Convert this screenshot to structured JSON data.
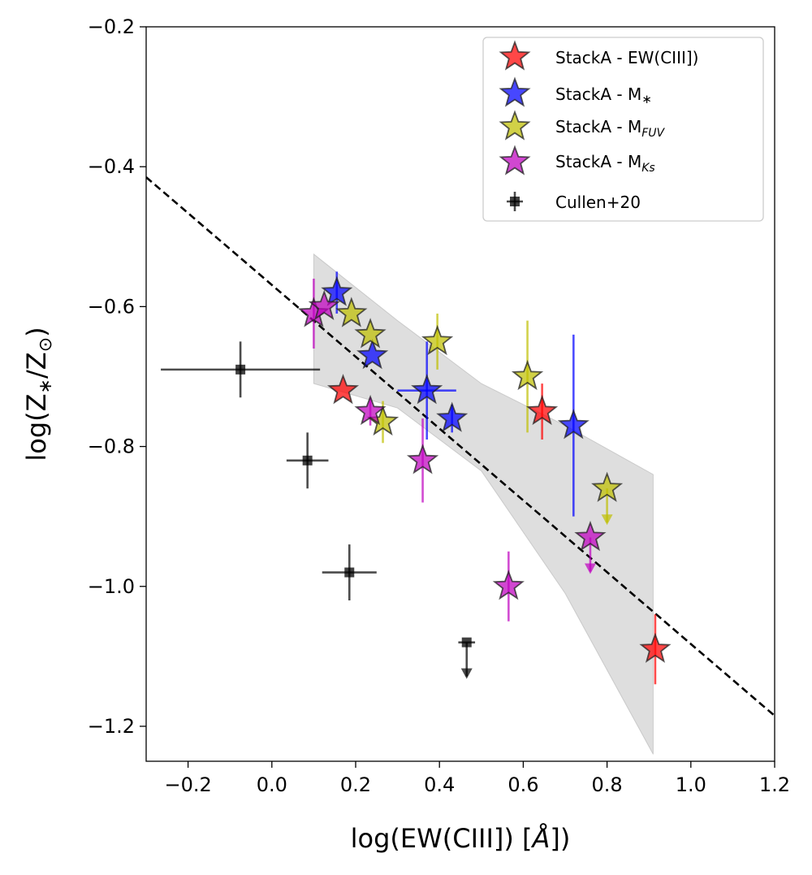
{
  "chart_data": {
    "type": "scatter",
    "title": "",
    "xlabel_main": "log(EW(CIII]) [",
    "xlabel_unit": "Å",
    "xlabel_close": "])",
    "ylabel_main": "log(Z",
    "ylabel_sub1": "∗",
    "ylabel_mid": "/Z",
    "ylabel_sub2": "⊙",
    "ylabel_close": ")",
    "xlim": [
      -0.3,
      1.2
    ],
    "ylim": [
      -1.25,
      -0.2
    ],
    "xticks": [
      -0.2,
      0.0,
      0.2,
      0.4,
      0.6,
      0.8,
      1.0,
      1.2
    ],
    "xtick_labels": [
      "−0.2",
      "0.0",
      "0.2",
      "0.4",
      "0.6",
      "0.8",
      "1.0",
      "1.2"
    ],
    "yticks": [
      -1.2,
      -1.0,
      -0.8,
      -0.6,
      -0.4,
      -0.2
    ],
    "ytick_labels": [
      "−1.2",
      "−1.0",
      "−0.8",
      "−0.6",
      "−0.4",
      "−0.2"
    ],
    "fit_line": {
      "x": [
        -0.3,
        1.2
      ],
      "y": [
        -0.415,
        -1.185
      ],
      "color": "#000000",
      "style": "dashed"
    },
    "confidence_band": {
      "x": [
        0.1,
        0.3,
        0.5,
        0.7,
        0.91
      ],
      "upper": [
        -0.525,
        -0.62,
        -0.71,
        -0.77,
        -0.84
      ],
      "lower": [
        -0.71,
        -0.745,
        -0.835,
        -1.01,
        -1.24
      ],
      "color": "#c8c8c8"
    },
    "legend_position": "top-right",
    "legend": [
      {
        "label": "StackA - EW(CIII])",
        "base": "StackA - EW(CIII])",
        "sub": "",
        "color": "#ff0000",
        "marker": "star"
      },
      {
        "label": "StackA - M*",
        "base": "StackA - M",
        "sub": "∗",
        "color": "#0000ff",
        "marker": "star"
      },
      {
        "label": "StackA - M_FUV",
        "base": "StackA - M",
        "sub": "FUV",
        "color": "#bfbf00",
        "marker": "star"
      },
      {
        "label": "StackA - M_Ks",
        "base": "StackA - M",
        "sub": "Ks",
        "color": "#bf00bf",
        "marker": "star"
      },
      {
        "label": "Cullen+20",
        "base": "Cullen+20",
        "sub": "",
        "color": "#000000",
        "marker": "square"
      }
    ],
    "series": [
      {
        "name": "StackA - EW(CIII])",
        "color": "#ff0000",
        "marker": "star",
        "points": [
          {
            "x": 0.17,
            "y": -0.72,
            "yerr": 0.0,
            "xerr": 0.0
          },
          {
            "x": 0.645,
            "y": -0.75,
            "yerr": 0.04,
            "xerr": 0.0
          },
          {
            "x": 0.915,
            "y": -1.09,
            "yerr": 0.05,
            "xerr": 0.0
          }
        ]
      },
      {
        "name": "StackA - M*",
        "color": "#0000ff",
        "marker": "star",
        "points": [
          {
            "x": 0.155,
            "y": -0.58,
            "yerr": 0.03,
            "xerr": 0.0
          },
          {
            "x": 0.24,
            "y": -0.67,
            "yerr": 0.0,
            "xerr": 0.0
          },
          {
            "x": 0.37,
            "y": -0.72,
            "yerr": 0.07,
            "xerr": 0.07
          },
          {
            "x": 0.43,
            "y": -0.76,
            "yerr": 0.02,
            "xerr": 0.0
          },
          {
            "x": 0.72,
            "y": -0.77,
            "yerr_low": 0.13,
            "yerr_high": 0.13,
            "xerr": 0.0
          }
        ]
      },
      {
        "name": "StackA - M_FUV",
        "color": "#bfbf00",
        "marker": "star",
        "points": [
          {
            "x": 0.19,
            "y": -0.61,
            "yerr": 0.0,
            "xerr": 0.0
          },
          {
            "x": 0.235,
            "y": -0.64,
            "yerr": 0.0,
            "xerr": 0.0
          },
          {
            "x": 0.265,
            "y": -0.765,
            "yerr": 0.03,
            "xerr": 0.0
          },
          {
            "x": 0.395,
            "y": -0.65,
            "yerr": 0.04,
            "xerr": 0.0
          },
          {
            "x": 0.61,
            "y": -0.7,
            "yerr": 0.08,
            "xerr": 0.0
          },
          {
            "x": 0.8,
            "y": -0.86,
            "yerr": 0.0,
            "xerr": 0.0,
            "upper_limit": true
          }
        ]
      },
      {
        "name": "StackA - M_Ks",
        "color": "#bf00bf",
        "marker": "star",
        "points": [
          {
            "x": 0.1,
            "y": -0.61,
            "yerr": 0.05,
            "xerr": 0.0
          },
          {
            "x": 0.125,
            "y": -0.6,
            "yerr": 0.0,
            "xerr": 0.0
          },
          {
            "x": 0.235,
            "y": -0.75,
            "yerr": 0.02,
            "xerr": 0.0
          },
          {
            "x": 0.36,
            "y": -0.82,
            "yerr": 0.06,
            "xerr": 0.0
          },
          {
            "x": 0.565,
            "y": -1.0,
            "yerr": 0.05,
            "xerr": 0.0
          },
          {
            "x": 0.76,
            "y": -0.93,
            "yerr": 0.0,
            "xerr": 0.0,
            "upper_limit": true
          }
        ]
      },
      {
        "name": "Cullen+20",
        "color": "#000000",
        "marker": "square",
        "points": [
          {
            "x": -0.075,
            "y": -0.69,
            "yerr": 0.04,
            "xerr_low": 0.19,
            "xerr_high": 0.19
          },
          {
            "x": 0.085,
            "y": -0.82,
            "yerr": 0.04,
            "xerr_low": 0.05,
            "xerr_high": 0.05
          },
          {
            "x": 0.185,
            "y": -0.98,
            "yerr": 0.04,
            "xerr_low": 0.065,
            "xerr_high": 0.065
          },
          {
            "x": 0.465,
            "y": -1.08,
            "yerr": 0.0,
            "xerr_low": 0.02,
            "xerr_high": 0.02,
            "upper_limit": true
          }
        ]
      }
    ]
  }
}
